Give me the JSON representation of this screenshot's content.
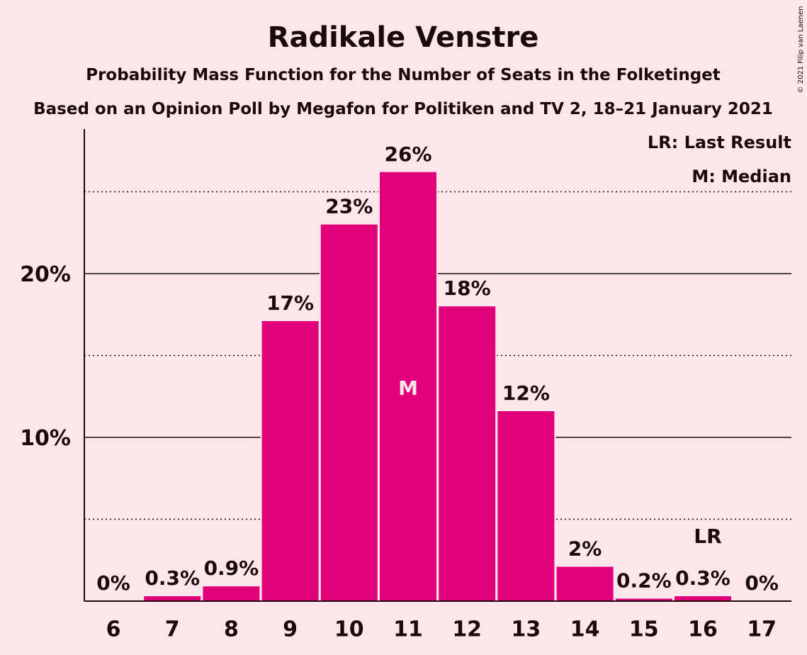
{
  "chart_data": {
    "type": "bar",
    "title": "Radikale Venstre",
    "subtitle": "Probability Mass Function for the Number of Seats in the Folketinget",
    "subtitle2": "Based on an Opinion Poll by Megafon for Politiken and TV 2, 18–21 January 2021",
    "copyright": "© 2021 Filip van Laenen",
    "categories": [
      "6",
      "7",
      "8",
      "9",
      "10",
      "11",
      "12",
      "13",
      "14",
      "15",
      "16",
      "17"
    ],
    "values": [
      0,
      0.3,
      0.9,
      17.1,
      23.0,
      26.2,
      18.0,
      11.6,
      2.1,
      0.15,
      0.3,
      0
    ],
    "value_labels": [
      "0%",
      "0.3%",
      "0.9%",
      "17%",
      "23%",
      "26%",
      "18%",
      "12%",
      "2%",
      "0.2%",
      "0.3%",
      "0%"
    ],
    "ylim": [
      0,
      28.6
    ],
    "major_ticks": [
      10,
      20
    ],
    "major_tick_labels": [
      "10%",
      "20%"
    ],
    "minor_gridlines": [
      5,
      15,
      25
    ],
    "median_index": 5,
    "median_marker": "M",
    "last_result_index": 10,
    "last_result_marker": "LR",
    "legend": [
      "LR: Last Result",
      "M: Median"
    ],
    "legend_position": "top-right",
    "bar_color": "#E2007A",
    "background_color": "#FDE6EA"
  }
}
